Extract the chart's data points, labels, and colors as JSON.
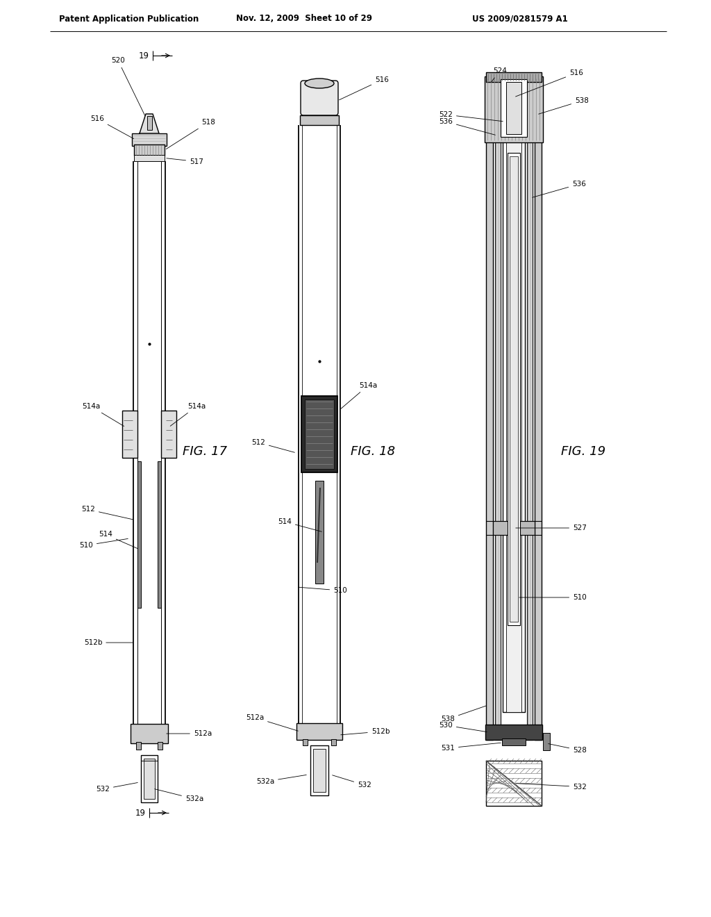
{
  "bg_color": "#ffffff",
  "header_left": "Patent Application Publication",
  "header_mid": "Nov. 12, 2009  Sheet 10 of 29",
  "header_right": "US 2009/0281579 A1",
  "fig17_label": "FIG. 17",
  "fig18_label": "FIG. 18",
  "fig19_label": "FIG. 19",
  "line_color": "#000000",
  "lw": 1.0
}
